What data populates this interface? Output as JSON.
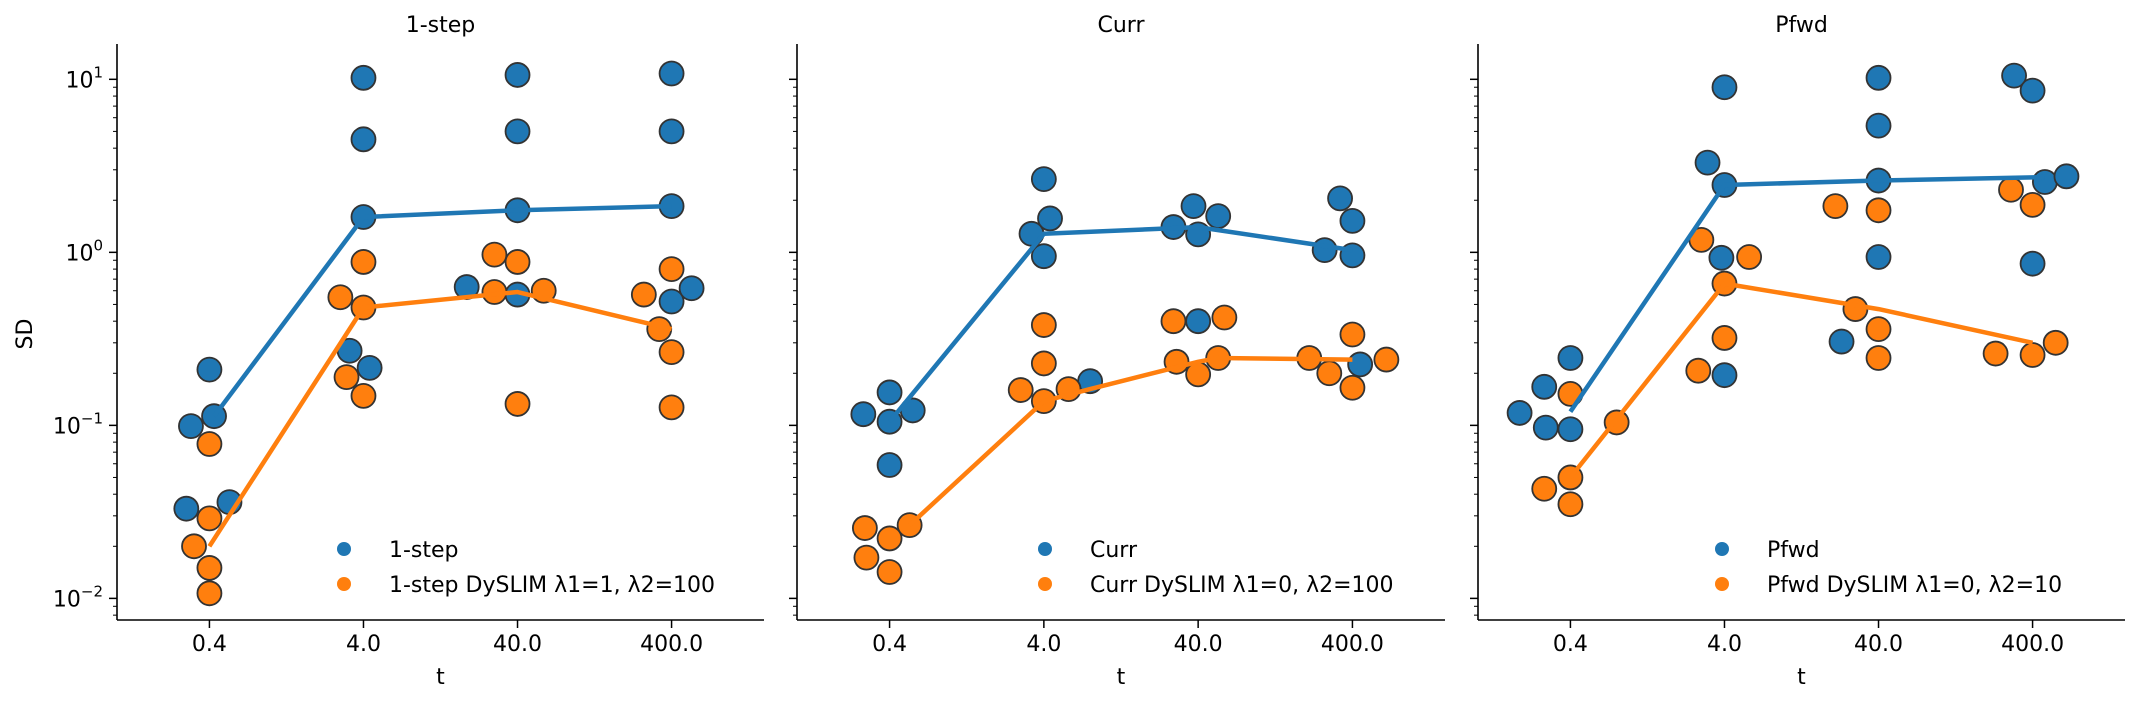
{
  "figure": {
    "shared_ylabel": "SD"
  },
  "colors": {
    "blue": "#1f77b4",
    "orange": "#ff7f0e",
    "edge": "#333333"
  },
  "chart_data": [
    {
      "type": "scatter",
      "title": "1-step",
      "xlabel": "t",
      "ylabel": "SD",
      "yscale": "log",
      "ylim": [
        0.0075,
        16
      ],
      "categories": [
        "0.4",
        "4.0",
        "40.0",
        "400.0"
      ],
      "legend": {
        "location": "lower-right",
        "entries": [
          "1-step",
          "1-step DySLIM λ1=1, λ2=100"
        ]
      },
      "series": [
        {
          "name": "1-step",
          "color": "blue",
          "points": [
            {
              "cat": 0,
              "dx": -0.15,
              "y": 0.033
            },
            {
              "cat": 0,
              "dx": -0.12,
              "y": 0.099
            },
            {
              "cat": 0,
              "dx": 0.0,
              "y": 0.21
            },
            {
              "cat": 0,
              "dx": 0.03,
              "y": 0.113
            },
            {
              "cat": 0,
              "dx": 0.13,
              "y": 0.036
            },
            {
              "cat": 1,
              "dx": -0.09,
              "y": 0.27
            },
            {
              "cat": 1,
              "dx": 0.0,
              "y": 10.2
            },
            {
              "cat": 1,
              "dx": 0.0,
              "y": 4.5
            },
            {
              "cat": 1,
              "dx": 0.0,
              "y": 1.6
            },
            {
              "cat": 1,
              "dx": 0.04,
              "y": 0.215
            },
            {
              "cat": 2,
              "dx": -0.33,
              "y": 0.63
            },
            {
              "cat": 2,
              "dx": 0.0,
              "y": 10.6
            },
            {
              "cat": 2,
              "dx": 0.0,
              "y": 5.0
            },
            {
              "cat": 2,
              "dx": 0.0,
              "y": 1.75
            },
            {
              "cat": 2,
              "dx": 0.0,
              "y": 0.57
            },
            {
              "cat": 3,
              "dx": 0.0,
              "y": 10.8
            },
            {
              "cat": 3,
              "dx": 0.0,
              "y": 5.0
            },
            {
              "cat": 3,
              "dx": 0.0,
              "y": 1.85
            },
            {
              "cat": 3,
              "dx": 0.0,
              "y": 0.52
            },
            {
              "cat": 3,
              "dx": 0.13,
              "y": 0.62
            }
          ],
          "line": {
            "x": [
              0.03,
              1.0,
              2.0,
              3.0
            ],
            "y": [
              0.113,
              1.6,
              1.75,
              1.85
            ]
          }
        },
        {
          "name": "1-step DySLIM λ1=1, λ2=100",
          "color": "orange",
          "points": [
            {
              "cat": 0,
              "dx": -0.1,
              "y": 0.02
            },
            {
              "cat": 0,
              "dx": 0.0,
              "y": 0.078
            },
            {
              "cat": 0,
              "dx": 0.0,
              "y": 0.029
            },
            {
              "cat": 0,
              "dx": 0.0,
              "y": 0.015
            },
            {
              "cat": 0,
              "dx": 0.0,
              "y": 0.0107
            },
            {
              "cat": 1,
              "dx": -0.15,
              "y": 0.55
            },
            {
              "cat": 1,
              "dx": -0.11,
              "y": 0.19
            },
            {
              "cat": 1,
              "dx": 0.0,
              "y": 0.88
            },
            {
              "cat": 1,
              "dx": 0.0,
              "y": 0.48
            },
            {
              "cat": 1,
              "dx": 0.0,
              "y": 0.148
            },
            {
              "cat": 2,
              "dx": -0.15,
              "y": 0.59
            },
            {
              "cat": 2,
              "dx": -0.15,
              "y": 0.97
            },
            {
              "cat": 2,
              "dx": 0.0,
              "y": 0.88
            },
            {
              "cat": 2,
              "dx": 0.0,
              "y": 0.133
            },
            {
              "cat": 2,
              "dx": 0.17,
              "y": 0.6
            },
            {
              "cat": 3,
              "dx": -0.18,
              "y": 0.57
            },
            {
              "cat": 3,
              "dx": -0.08,
              "y": 0.36
            },
            {
              "cat": 3,
              "dx": 0.0,
              "y": 0.8
            },
            {
              "cat": 3,
              "dx": 0.0,
              "y": 0.265
            },
            {
              "cat": 3,
              "dx": 0.0,
              "y": 0.127
            }
          ],
          "line": {
            "x": [
              0.0,
              1.0,
              2.0,
              3.0
            ],
            "y": [
              0.02,
              0.48,
              0.59,
              0.36
            ]
          }
        }
      ]
    },
    {
      "type": "scatter",
      "title": "Curr",
      "xlabel": "t",
      "ylabel": "",
      "yscale": "log",
      "ylim": [
        0.0075,
        16
      ],
      "categories": [
        "0.4",
        "4.0",
        "40.0",
        "400.0"
      ],
      "legend": {
        "location": "lower-right",
        "entries": [
          "Curr",
          "Curr DySLIM λ1=0, λ2=100"
        ]
      },
      "series": [
        {
          "name": "Curr",
          "color": "blue",
          "points": [
            {
              "cat": 0,
              "dx": -0.17,
              "y": 0.116
            },
            {
              "cat": 0,
              "dx": 0.0,
              "y": 0.155
            },
            {
              "cat": 0,
              "dx": 0.0,
              "y": 0.105
            },
            {
              "cat": 0,
              "dx": 0.0,
              "y": 0.059
            },
            {
              "cat": 0,
              "dx": 0.15,
              "y": 0.122
            },
            {
              "cat": 1,
              "dx": -0.08,
              "y": 1.28
            },
            {
              "cat": 1,
              "dx": 0.0,
              "y": 2.65
            },
            {
              "cat": 1,
              "dx": 0.0,
              "y": 0.95
            },
            {
              "cat": 1,
              "dx": 0.04,
              "y": 1.57
            },
            {
              "cat": 1,
              "dx": 0.3,
              "y": 0.18
            },
            {
              "cat": 2,
              "dx": -0.16,
              "y": 1.4
            },
            {
              "cat": 2,
              "dx": -0.03,
              "y": 1.85
            },
            {
              "cat": 2,
              "dx": 0.0,
              "y": 1.27
            },
            {
              "cat": 2,
              "dx": 0.0,
              "y": 0.4
            },
            {
              "cat": 2,
              "dx": 0.13,
              "y": 1.62
            },
            {
              "cat": 3,
              "dx": -0.18,
              "y": 1.03
            },
            {
              "cat": 3,
              "dx": -0.08,
              "y": 2.05
            },
            {
              "cat": 3,
              "dx": 0.0,
              "y": 1.52
            },
            {
              "cat": 3,
              "dx": 0.0,
              "y": 0.96
            },
            {
              "cat": 3,
              "dx": 0.05,
              "y": 0.225
            }
          ],
          "line": {
            "x": [
              0.0,
              1.0,
              2.0,
              3.0
            ],
            "y": [
              0.105,
              1.28,
              1.4,
              1.03
            ]
          }
        },
        {
          "name": "Curr DySLIM λ1=0, λ2=100",
          "color": "orange",
          "points": [
            {
              "cat": 0,
              "dx": -0.16,
              "y": 0.0255
            },
            {
              "cat": 0,
              "dx": -0.15,
              "y": 0.0172
            },
            {
              "cat": 0,
              "dx": 0.0,
              "y": 0.0222
            },
            {
              "cat": 0,
              "dx": 0.0,
              "y": 0.0142
            },
            {
              "cat": 0,
              "dx": 0.13,
              "y": 0.0265
            },
            {
              "cat": 1,
              "dx": -0.15,
              "y": 0.16
            },
            {
              "cat": 1,
              "dx": 0.0,
              "y": 0.38
            },
            {
              "cat": 1,
              "dx": 0.0,
              "y": 0.228
            },
            {
              "cat": 1,
              "dx": 0.0,
              "y": 0.138
            },
            {
              "cat": 1,
              "dx": 0.16,
              "y": 0.162
            },
            {
              "cat": 2,
              "dx": -0.16,
              "y": 0.4
            },
            {
              "cat": 2,
              "dx": -0.14,
              "y": 0.233
            },
            {
              "cat": 2,
              "dx": 0.0,
              "y": 0.197
            },
            {
              "cat": 2,
              "dx": 0.13,
              "y": 0.245
            },
            {
              "cat": 2,
              "dx": 0.17,
              "y": 0.42
            },
            {
              "cat": 3,
              "dx": -0.28,
              "y": 0.245
            },
            {
              "cat": 3,
              "dx": -0.15,
              "y": 0.2
            },
            {
              "cat": 3,
              "dx": 0.0,
              "y": 0.335
            },
            {
              "cat": 3,
              "dx": 0.0,
              "y": 0.165
            },
            {
              "cat": 3,
              "dx": 0.22,
              "y": 0.24
            }
          ],
          "line": {
            "x": [
              0.13,
              1.0,
              1.3,
              2.0,
              2.13,
              3.0
            ],
            "y": [
              0.0265,
              0.138,
              0.162,
              0.233,
              0.245,
              0.24
            ]
          }
        }
      ]
    },
    {
      "type": "scatter",
      "title": "Pfwd",
      "xlabel": "t",
      "ylabel": "",
      "yscale": "log",
      "ylim": [
        0.0075,
        16
      ],
      "categories": [
        "0.4",
        "4.0",
        "40.0",
        "400.0"
      ],
      "legend": {
        "location": "lower-right",
        "entries": [
          "Pfwd",
          "Pfwd DySLIM λ1=0, λ2=10"
        ]
      },
      "series": [
        {
          "name": "Pfwd",
          "color": "blue",
          "points": [
            {
              "cat": 0,
              "dx": -0.33,
              "y": 0.118
            },
            {
              "cat": 0,
              "dx": -0.17,
              "y": 0.167
            },
            {
              "cat": 0,
              "dx": -0.16,
              "y": 0.097
            },
            {
              "cat": 0,
              "dx": 0.0,
              "y": 0.245
            },
            {
              "cat": 0,
              "dx": 0.0,
              "y": 0.095
            },
            {
              "cat": 1,
              "dx": -0.11,
              "y": 3.3
            },
            {
              "cat": 1,
              "dx": -0.02,
              "y": 0.93
            },
            {
              "cat": 1,
              "dx": 0.0,
              "y": 9.0
            },
            {
              "cat": 1,
              "dx": 0.0,
              "y": 2.45
            },
            {
              "cat": 1,
              "dx": 0.0,
              "y": 0.195
            },
            {
              "cat": 2,
              "dx": -0.24,
              "y": 0.305
            },
            {
              "cat": 2,
              "dx": 0.0,
              "y": 10.2
            },
            {
              "cat": 2,
              "dx": 0.0,
              "y": 5.4
            },
            {
              "cat": 2,
              "dx": 0.0,
              "y": 2.6
            },
            {
              "cat": 2,
              "dx": 0.0,
              "y": 0.94
            },
            {
              "cat": 3,
              "dx": -0.12,
              "y": 10.5
            },
            {
              "cat": 3,
              "dx": 0.0,
              "y": 8.6
            },
            {
              "cat": 3,
              "dx": 0.0,
              "y": 0.86
            },
            {
              "cat": 3,
              "dx": 0.08,
              "y": 2.55
            },
            {
              "cat": 3,
              "dx": 0.22,
              "y": 2.75
            }
          ],
          "line": {
            "x": [
              0.0,
              1.0,
              2.0,
              3.08
            ],
            "y": [
              0.12,
              2.45,
              2.6,
              2.72
            ]
          }
        },
        {
          "name": "Pfwd DySLIM λ1=0, λ2=10",
          "color": "orange",
          "points": [
            {
              "cat": 0,
              "dx": -0.17,
              "y": 0.043
            },
            {
              "cat": 0,
              "dx": 0.0,
              "y": 0.152
            },
            {
              "cat": 0,
              "dx": 0.0,
              "y": 0.05
            },
            {
              "cat": 0,
              "dx": 0.0,
              "y": 0.035
            },
            {
              "cat": 0,
              "dx": 0.3,
              "y": 0.104
            },
            {
              "cat": 1,
              "dx": -0.15,
              "y": 1.18
            },
            {
              "cat": 1,
              "dx": -0.17,
              "y": 0.207
            },
            {
              "cat": 1,
              "dx": 0.0,
              "y": 0.66
            },
            {
              "cat": 1,
              "dx": 0.0,
              "y": 0.32
            },
            {
              "cat": 1,
              "dx": 0.16,
              "y": 0.94
            },
            {
              "cat": 2,
              "dx": -0.28,
              "y": 1.85
            },
            {
              "cat": 2,
              "dx": -0.15,
              "y": 0.47
            },
            {
              "cat": 2,
              "dx": 0.0,
              "y": 1.75
            },
            {
              "cat": 2,
              "dx": 0.0,
              "y": 0.36
            },
            {
              "cat": 2,
              "dx": 0.0,
              "y": 0.245
            },
            {
              "cat": 3,
              "dx": -0.24,
              "y": 0.26
            },
            {
              "cat": 3,
              "dx": -0.14,
              "y": 2.3
            },
            {
              "cat": 3,
              "dx": 0.0,
              "y": 1.88
            },
            {
              "cat": 3,
              "dx": 0.0,
              "y": 0.255
            },
            {
              "cat": 3,
              "dx": 0.15,
              "y": 0.3
            }
          ],
          "line": {
            "x": [
              0.0,
              1.0,
              2.0,
              3.0
            ],
            "y": [
              0.05,
              0.66,
              0.47,
              0.3
            ]
          }
        }
      ]
    }
  ]
}
